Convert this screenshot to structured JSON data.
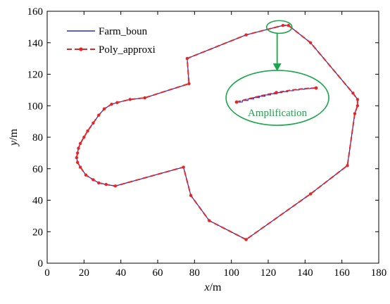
{
  "chart_data": {
    "type": "line",
    "xlabel": {
      "var": "x",
      "unit": "/m"
    },
    "ylabel": {
      "var": "y",
      "unit": "/m"
    },
    "xlim": [
      0,
      180
    ],
    "ylim": [
      0,
      160
    ],
    "xticks": [
      0,
      20,
      40,
      60,
      80,
      100,
      120,
      140,
      160,
      180
    ],
    "yticks": [
      0,
      20,
      40,
      60,
      80,
      100,
      120,
      140,
      160
    ],
    "grid": false,
    "legend_position": "top-left",
    "colors": {
      "farm": "#1f2bd6",
      "poly": "#e32626",
      "annotation": "#1aa64a"
    },
    "series": [
      {
        "name": "Farm_boun",
        "style": "solid-line",
        "points": [
          [
            108,
            15
          ],
          [
            88,
            27
          ],
          [
            78,
            43
          ],
          [
            74,
            61
          ],
          [
            37,
            49
          ],
          [
            32,
            50
          ],
          [
            28,
            51
          ],
          [
            25,
            53
          ],
          [
            21,
            56
          ],
          [
            18,
            61
          ],
          [
            16.5,
            64
          ],
          [
            16,
            67
          ],
          [
            16.5,
            70
          ],
          [
            17,
            73
          ],
          [
            18,
            76
          ],
          [
            20,
            80
          ],
          [
            22,
            84
          ],
          [
            25,
            89
          ],
          [
            28,
            94
          ],
          [
            31,
            98
          ],
          [
            35,
            101
          ],
          [
            38,
            102
          ],
          [
            45,
            104
          ],
          [
            53,
            105
          ],
          [
            77,
            114
          ],
          [
            76,
            130
          ],
          [
            108,
            145
          ],
          [
            128,
            151
          ],
          [
            131,
            151
          ],
          [
            143,
            140
          ],
          [
            166,
            108
          ],
          [
            168.5,
            104
          ],
          [
            168.5,
            100
          ],
          [
            167,
            95
          ],
          [
            163,
            62
          ],
          [
            143,
            44
          ],
          [
            108,
            15
          ]
        ]
      },
      {
        "name": "Poly_approxi",
        "style": "dashed-line-with-markers",
        "points": [
          [
            108,
            15
          ],
          [
            88,
            27
          ],
          [
            78,
            43
          ],
          [
            74,
            61
          ],
          [
            37,
            49
          ],
          [
            32,
            50
          ],
          [
            28,
            51
          ],
          [
            25,
            53
          ],
          [
            21,
            56
          ],
          [
            18,
            61
          ],
          [
            16.5,
            64
          ],
          [
            16,
            67
          ],
          [
            16.5,
            70
          ],
          [
            17,
            73
          ],
          [
            18,
            76
          ],
          [
            20,
            80
          ],
          [
            22,
            84
          ],
          [
            25,
            89
          ],
          [
            28,
            94
          ],
          [
            31,
            98
          ],
          [
            35,
            101
          ],
          [
            38,
            102
          ],
          [
            45,
            104
          ],
          [
            53,
            105
          ],
          [
            77,
            114
          ],
          [
            76,
            130
          ],
          [
            108,
            145
          ],
          [
            128,
            151
          ],
          [
            131,
            151
          ],
          [
            143,
            140
          ],
          [
            166,
            108
          ],
          [
            168.5,
            104
          ],
          [
            168.5,
            100
          ],
          [
            167,
            95
          ],
          [
            163,
            62
          ],
          [
            143,
            44
          ],
          [
            108,
            15
          ]
        ]
      }
    ],
    "annotations": [
      {
        "label": "Amplification",
        "center": [
          126,
          150
        ],
        "callout_center": [
          125,
          105
        ]
      }
    ]
  }
}
